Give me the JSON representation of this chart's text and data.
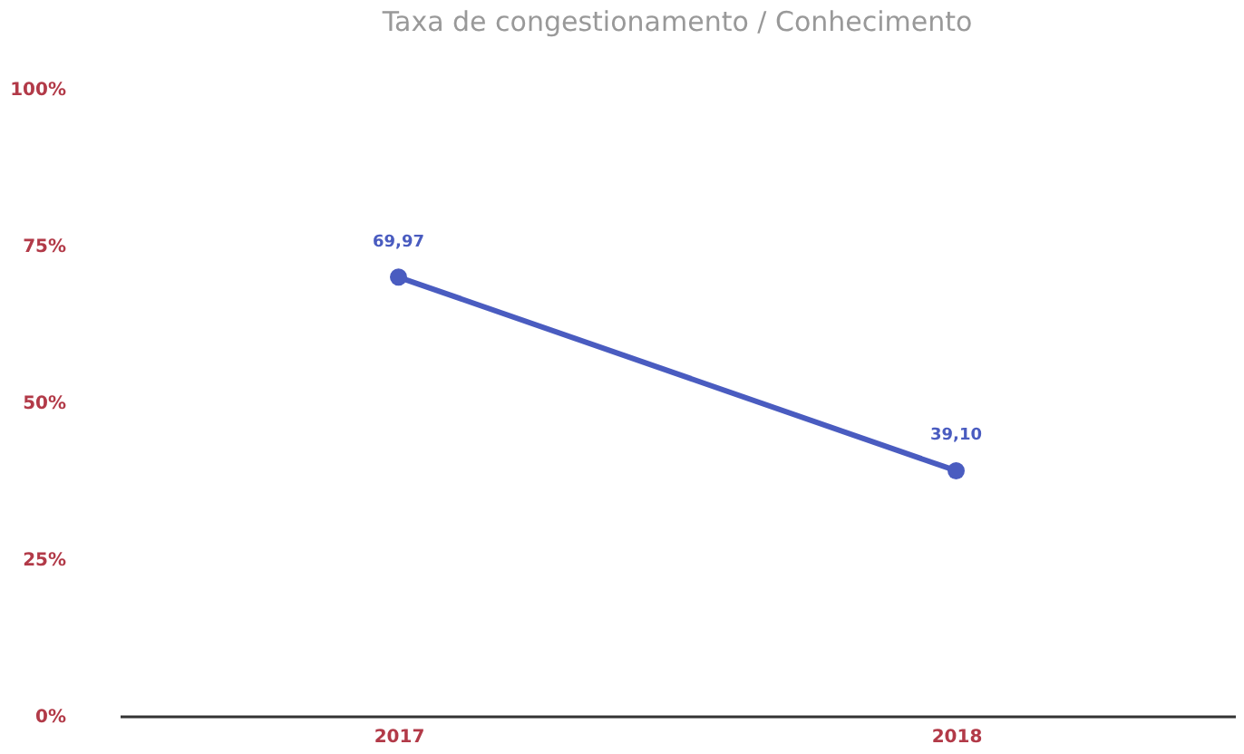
{
  "chart_data": {
    "type": "line",
    "title": "Taxa de congestionamento / Conhecimento",
    "categories": [
      "2017",
      "2018"
    ],
    "series": [
      {
        "color": "#4a5cc0",
        "values": [
          69.97,
          39.1
        ],
        "value_labels": [
          "69,97",
          "39,10"
        ]
      }
    ],
    "ylim": [
      0,
      100
    ],
    "yticks": [
      {
        "value": 0,
        "label": "0%"
      },
      {
        "value": 25,
        "label": "25%"
      },
      {
        "value": 50,
        "label": "50%"
      },
      {
        "value": 75,
        "label": "75%"
      },
      {
        "value": 100,
        "label": "100%"
      }
    ],
    "marker": "circle",
    "line_style": "solid"
  }
}
